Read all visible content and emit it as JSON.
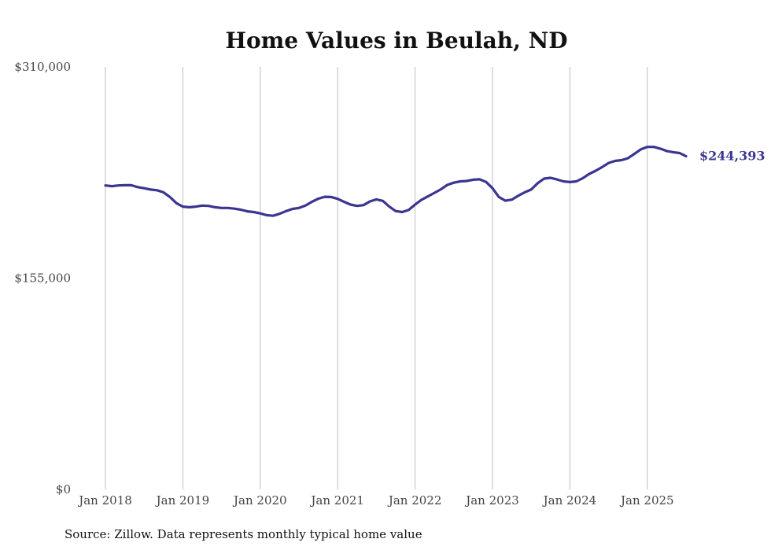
{
  "chart_data": {
    "type": "line",
    "title": "Home Values in Beulah, ND",
    "source": "Source: Zillow. Data represents monthly typical home value",
    "xlabel": "",
    "ylabel": "",
    "x_start": "2018-01",
    "ylim": [
      0,
      310000
    ],
    "y_ticks": [
      {
        "value": 0,
        "label": "$0"
      },
      {
        "value": 155000,
        "label": "$155,000"
      },
      {
        "value": 310000,
        "label": "$310,000"
      }
    ],
    "x_ticks": [
      {
        "month_index": 0,
        "label": "Jan 2018"
      },
      {
        "month_index": 12,
        "label": "Jan 2019"
      },
      {
        "month_index": 24,
        "label": "Jan 2020"
      },
      {
        "month_index": 36,
        "label": "Jan 2021"
      },
      {
        "month_index": 48,
        "label": "Jan 2022"
      },
      {
        "month_index": 60,
        "label": "Jan 2023"
      },
      {
        "month_index": 72,
        "label": "Jan 2024"
      },
      {
        "month_index": 84,
        "label": "Jan 2025"
      }
    ],
    "grid": "vertical",
    "line_color": "#3a3591",
    "end_label": "$244,393",
    "series": [
      {
        "values": [
          223000,
          222500,
          223000,
          223200,
          223200,
          221800,
          221000,
          220000,
          219500,
          218000,
          214500,
          210000,
          207500,
          207000,
          207500,
          208200,
          208000,
          207000,
          206500,
          206500,
          206000,
          205200,
          204000,
          203500,
          202500,
          201200,
          200800,
          202200,
          204200,
          205800,
          206500,
          208200,
          211000,
          213300,
          214700,
          214500,
          213200,
          211000,
          209000,
          208000,
          208600,
          211300,
          212800,
          211700,
          207500,
          204200,
          203500,
          205000,
          209000,
          212500,
          215000,
          217600,
          220200,
          223400,
          225000,
          226000,
          226300,
          227200,
          227500,
          225600,
          221000,
          214500,
          211800,
          212600,
          215500,
          218000,
          220000,
          224700,
          228000,
          228600,
          227400,
          226000,
          225500,
          226000,
          228400,
          231500,
          233800,
          236500,
          239500,
          241000,
          241600,
          243000,
          246200,
          249500,
          251300,
          251300,
          250000,
          248300,
          247400,
          246800,
          244393
        ]
      }
    ]
  }
}
